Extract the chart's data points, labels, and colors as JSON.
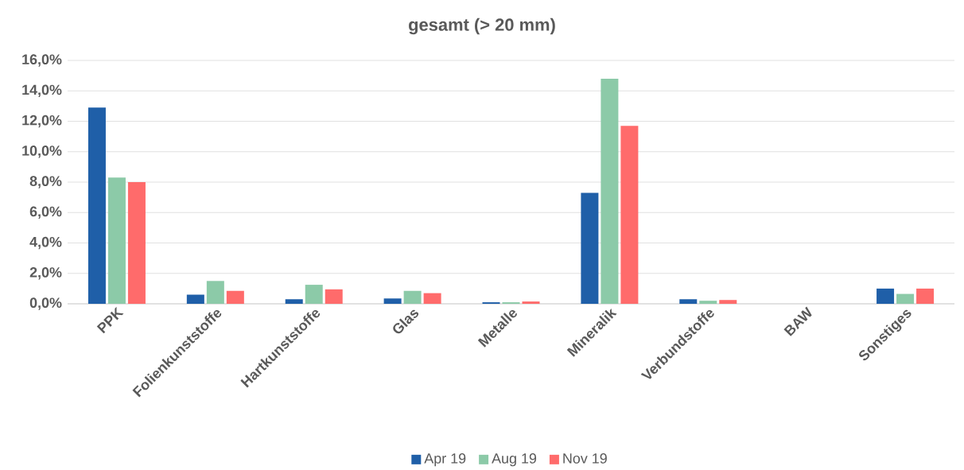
{
  "chart_data": {
    "type": "bar",
    "title": "gesamt (> 20 mm)",
    "categories": [
      "PPK",
      "Folienkunststoffe",
      "Hartkunststoffe",
      "Glas",
      "Metalle",
      "Mineralik",
      "Verbundstoffe",
      "BAW",
      "Sonstiges"
    ],
    "series": [
      {
        "name": "Apr 19",
        "color": "#1f5fa8",
        "values": [
          12.9,
          0.6,
          0.3,
          0.35,
          0.1,
          7.3,
          0.3,
          0,
          1.0
        ]
      },
      {
        "name": "Aug 19",
        "color": "#8ccaa8",
        "values": [
          8.3,
          1.5,
          1.25,
          0.85,
          0.1,
          14.8,
          0.2,
          0,
          0.65
        ]
      },
      {
        "name": "Nov 19",
        "color": "#ff6b6b",
        "values": [
          8.0,
          0.85,
          0.95,
          0.7,
          0.15,
          11.7,
          0.25,
          0,
          1.0
        ]
      }
    ],
    "ylim": [
      0,
      16
    ],
    "yticks": [
      {
        "value": 0,
        "label": "0,0%"
      },
      {
        "value": 2,
        "label": "2,0%"
      },
      {
        "value": 4,
        "label": "4,0%"
      },
      {
        "value": 6,
        "label": "6,0%"
      },
      {
        "value": 8,
        "label": "8,0%"
      },
      {
        "value": 10,
        "label": "10,0%"
      },
      {
        "value": 12,
        "label": "12,0%"
      },
      {
        "value": 14,
        "label": "14,0%"
      },
      {
        "value": 16,
        "label": "16,0%"
      }
    ],
    "grid": "y",
    "legend": "bottom"
  }
}
